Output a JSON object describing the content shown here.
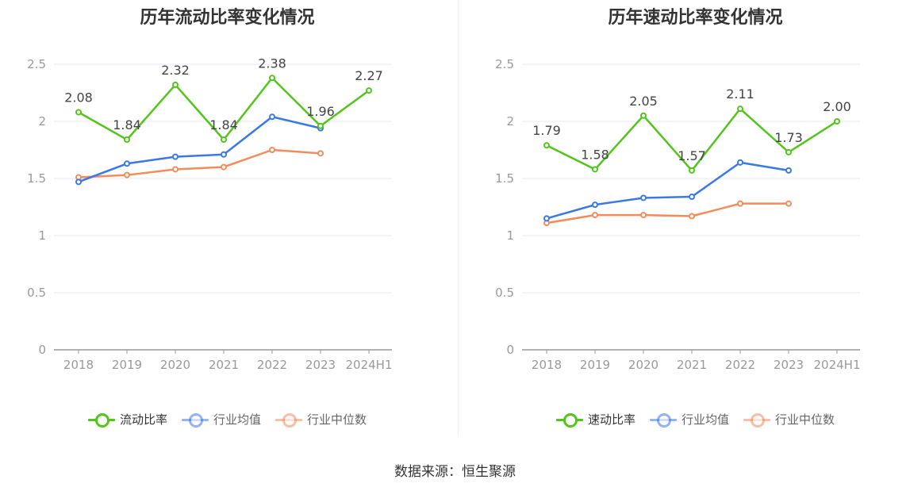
{
  "chart_data": [
    {
      "type": "line",
      "title": "历年流动比率变化情况",
      "categories": [
        "2018",
        "2019",
        "2020",
        "2021",
        "2022",
        "2023",
        "2024H1"
      ],
      "ylim": [
        0,
        2.5
      ],
      "yticks": [
        "0",
        "0.5",
        "1",
        "1.5",
        "2",
        "2.5"
      ],
      "grid": true,
      "legend_position": "bottom",
      "series": [
        {
          "name": "流动比率",
          "color": "#52c41a",
          "values": [
            2.08,
            1.84,
            2.32,
            1.84,
            2.38,
            1.96,
            2.27
          ],
          "labels": [
            "2.08",
            "1.84",
            "2.32",
            "1.84",
            "2.38",
            "1.96",
            "2.27"
          ]
        },
        {
          "name": "行业均值",
          "color": "#3b78e7",
          "values": [
            1.47,
            1.63,
            1.69,
            1.71,
            2.04,
            1.94,
            null
          ]
        },
        {
          "name": "行业中位数",
          "color": "#f28c5c",
          "values": [
            1.51,
            1.53,
            1.58,
            1.6,
            1.75,
            1.72,
            null
          ]
        }
      ]
    },
    {
      "type": "line",
      "title": "历年速动比率变化情况",
      "categories": [
        "2018",
        "2019",
        "2020",
        "2021",
        "2022",
        "2023",
        "2024H1"
      ],
      "ylim": [
        0,
        2.5
      ],
      "yticks": [
        "0",
        "0.5",
        "1",
        "1.5",
        "2",
        "2.5"
      ],
      "grid": true,
      "legend_position": "bottom",
      "series": [
        {
          "name": "速动比率",
          "color": "#52c41a",
          "values": [
            1.79,
            1.58,
            2.05,
            1.57,
            2.11,
            1.73,
            2.0
          ],
          "labels": [
            "1.79",
            "1.58",
            "2.05",
            "1.57",
            "2.11",
            "1.73",
            "2.00"
          ]
        },
        {
          "name": "行业均值",
          "color": "#3b78e7",
          "values": [
            1.15,
            1.27,
            1.33,
            1.34,
            1.64,
            1.57,
            null
          ]
        },
        {
          "name": "行业中位数",
          "color": "#f28c5c",
          "values": [
            1.11,
            1.18,
            1.18,
            1.17,
            1.28,
            1.28,
            null
          ]
        }
      ]
    }
  ],
  "source": "数据来源：恒生聚源"
}
